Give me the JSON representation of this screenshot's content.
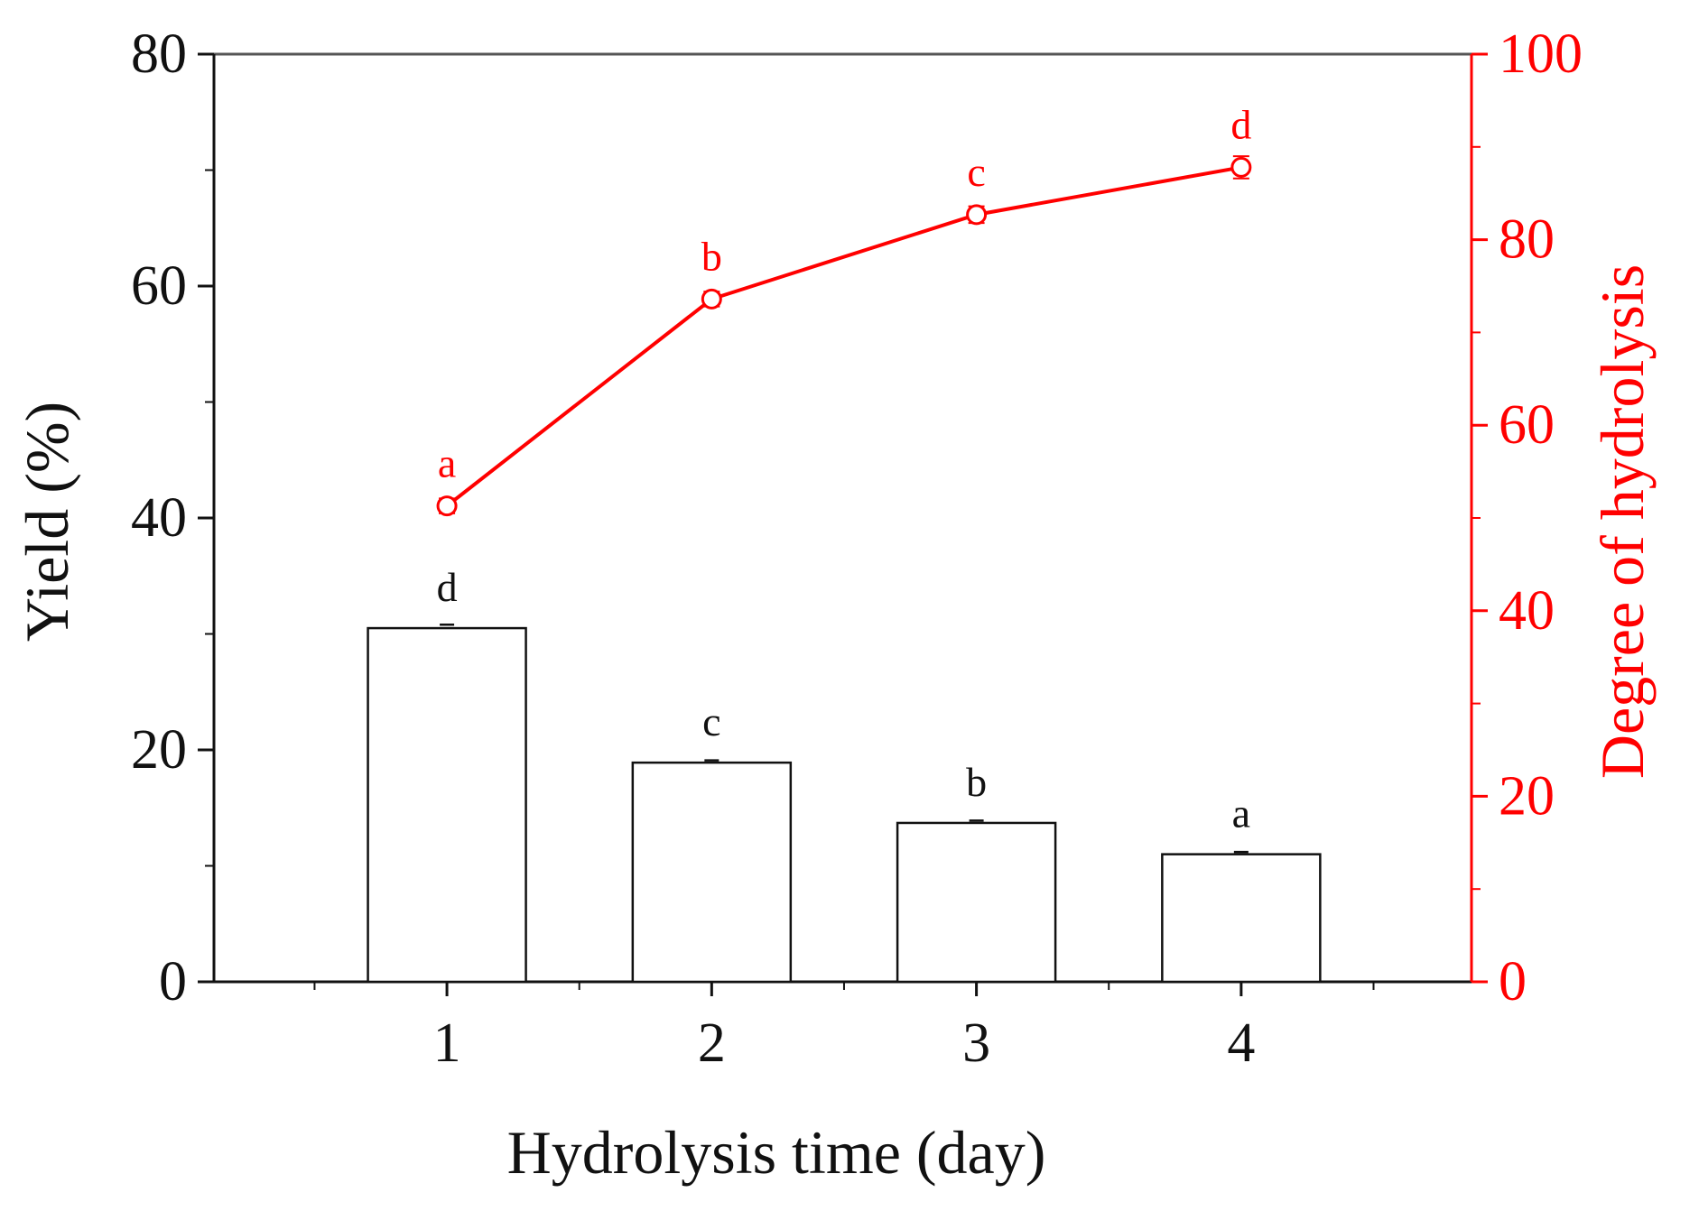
{
  "chart_data": {
    "type": "bar",
    "x_axis": {
      "title": "Hydrolysis time (day)",
      "categories": [
        "1",
        "2",
        "3",
        "4"
      ],
      "tick_labels": [
        "1",
        "2",
        "3",
        "4"
      ]
    },
    "y_left": {
      "title": "Yield (%)",
      "ylim": [
        0,
        80
      ],
      "ticks": [
        0,
        20,
        40,
        60,
        80
      ],
      "tick_labels": [
        "0",
        "20",
        "40",
        "60",
        "80"
      ]
    },
    "y_right": {
      "title": "Degree of hydrolysis",
      "ylim": [
        0,
        100
      ],
      "ticks": [
        0,
        20,
        40,
        60,
        80,
        100
      ],
      "tick_labels": [
        "0",
        "20",
        "40",
        "60",
        "80",
        "100"
      ]
    },
    "series": [
      {
        "kind": "bar",
        "axis": "left",
        "values": [
          30.5,
          18.9,
          13.7,
          11.0
        ],
        "errors": [
          0.3,
          0.2,
          0.2,
          0.2
        ],
        "letters": [
          "d",
          "c",
          "b",
          "a"
        ]
      },
      {
        "kind": "line",
        "axis": "right",
        "values": [
          51.3,
          73.6,
          82.7,
          87.8
        ],
        "errors": [
          0.8,
          0.8,
          0.9,
          1.2
        ],
        "letters": [
          "a",
          "b",
          "c",
          "d"
        ]
      }
    ],
    "grid": false,
    "legend": "none",
    "colors": {
      "bar_stroke": "#111111",
      "bar_fill": "#ffffff",
      "line": "#ff0000",
      "right_axis": "#ff0000",
      "left_axis": "#111111"
    }
  }
}
